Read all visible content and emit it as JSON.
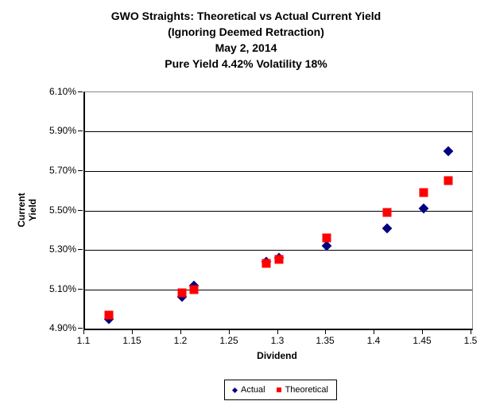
{
  "title": {
    "line1": "GWO Straights: Theoretical vs Actual Current Yield",
    "line2": "(Ignoring Deemed Retraction)",
    "line3": "May 2, 2014",
    "line4": "Pure Yield 4.42% Volatility 18%"
  },
  "chart_data": {
    "type": "scatter",
    "title": "GWO Straights: Theoretical vs Actual Current Yield (Ignoring Deemed Retraction) May 2, 2014 Pure Yield 4.42% Volatility 18%",
    "xlabel": "Dividend",
    "ylabel": "Current Yield",
    "xlim": [
      1.1,
      1.5
    ],
    "ylim": [
      4.9,
      6.1
    ],
    "grid": true,
    "legend_position": "bottom-center",
    "x_ticks": [
      {
        "value": 1.1,
        "label": "1.1"
      },
      {
        "value": 1.15,
        "label": "1.15"
      },
      {
        "value": 1.2,
        "label": "1.2"
      },
      {
        "value": 1.25,
        "label": "1.25"
      },
      {
        "value": 1.3,
        "label": "1.3"
      },
      {
        "value": 1.35,
        "label": "1.35"
      },
      {
        "value": 1.4,
        "label": "1.4"
      },
      {
        "value": 1.45,
        "label": "1.45"
      },
      {
        "value": 1.5,
        "label": "1.5"
      }
    ],
    "y_ticks": [
      {
        "value": 6.1,
        "label": "6.10%"
      },
      {
        "value": 5.9,
        "label": "5.90%"
      },
      {
        "value": 5.7,
        "label": "5.70%"
      },
      {
        "value": 5.5,
        "label": "5.50%"
      },
      {
        "value": 5.3,
        "label": "5.30%"
      },
      {
        "value": 5.1,
        "label": "5.10%"
      },
      {
        "value": 4.9,
        "label": "4.90%"
      }
    ],
    "series": [
      {
        "name": "Actual",
        "marker": "diamond",
        "color": "#000080",
        "points": [
          {
            "x": 1.125,
            "y": 4.95
          },
          {
            "x": 1.2,
            "y": 5.06
          },
          {
            "x": 1.2125,
            "y": 5.12
          },
          {
            "x": 1.2875,
            "y": 5.24
          },
          {
            "x": 1.3,
            "y": 5.26
          },
          {
            "x": 1.35,
            "y": 5.32
          },
          {
            "x": 1.4125,
            "y": 5.41
          },
          {
            "x": 1.45,
            "y": 5.51
          },
          {
            "x": 1.475,
            "y": 5.8
          }
        ]
      },
      {
        "name": "Theoretical",
        "marker": "square",
        "color": "#FF0000",
        "points": [
          {
            "x": 1.125,
            "y": 4.97
          },
          {
            "x": 1.2,
            "y": 5.08
          },
          {
            "x": 1.2125,
            "y": 5.1
          },
          {
            "x": 1.2875,
            "y": 5.23
          },
          {
            "x": 1.3,
            "y": 5.25
          },
          {
            "x": 1.35,
            "y": 5.36
          },
          {
            "x": 1.4125,
            "y": 5.49
          },
          {
            "x": 1.45,
            "y": 5.59
          },
          {
            "x": 1.475,
            "y": 5.65
          }
        ]
      }
    ]
  },
  "legend": {
    "actual_label": "Actual",
    "theoretical_label": "Theoretical"
  }
}
